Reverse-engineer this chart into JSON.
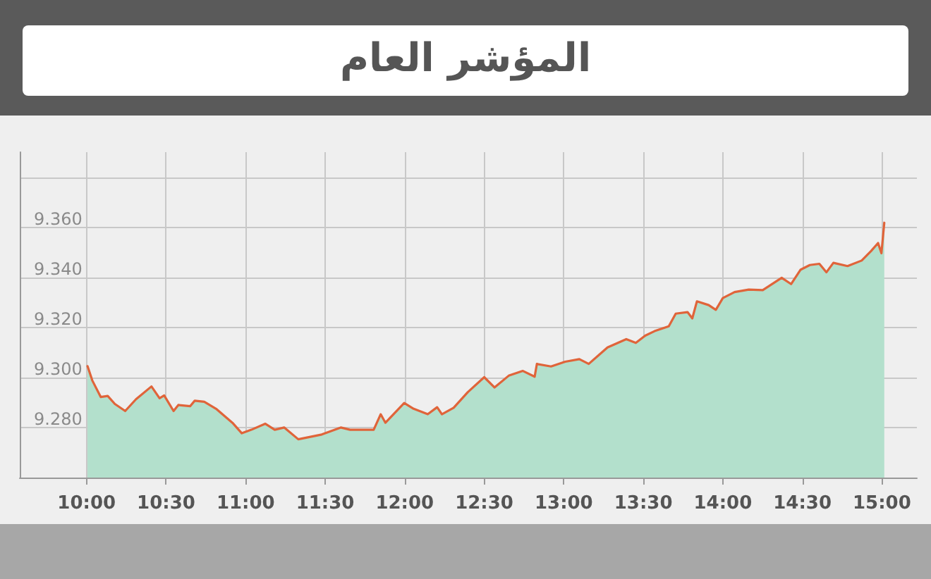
{
  "chart_data": {
    "type": "area",
    "title": "المؤشر العام",
    "x": [
      10.006,
      10.036,
      10.089,
      10.133,
      10.178,
      10.243,
      10.311,
      10.408,
      10.459,
      10.488,
      10.547,
      10.577,
      10.651,
      10.68,
      10.74,
      10.814,
      10.917,
      10.976,
      11.036,
      11.124,
      11.183,
      11.243,
      11.331,
      11.479,
      11.598,
      11.657,
      11.805,
      11.849,
      11.879,
      11.997,
      12.056,
      12.145,
      12.204,
      12.234,
      12.308,
      12.396,
      12.5,
      12.565,
      12.654,
      12.743,
      12.817,
      12.831,
      12.92,
      13.009,
      13.098,
      13.157,
      13.275,
      13.393,
      13.453,
      13.512,
      13.571,
      13.66,
      13.704,
      13.778,
      13.808,
      13.837,
      13.911,
      13.956,
      14.0,
      14.074,
      14.163,
      14.251,
      14.37,
      14.429,
      14.488,
      14.547,
      14.607,
      14.651,
      14.695,
      14.784,
      14.873,
      14.932,
      14.976,
      14.997,
      15.015
    ],
    "series": [
      {
        "color": "#b3e0cc",
        "values": [
          9304.5,
          9298.8,
          9292.2,
          9292.6,
          9289.4,
          9286.6,
          9291.3,
          9296.4,
          9291.7,
          9292.8,
          9286.6,
          9289.0,
          9288.5,
          9290.7,
          9290.3,
          9287.5,
          9281.9,
          9277.7,
          9279.1,
          9281.5,
          9279.1,
          9280.0,
          9275.3,
          9277.2,
          9280.0,
          9279.1,
          9279.1,
          9285.3,
          9281.9,
          9289.8,
          9287.5,
          9285.3,
          9288.1,
          9285.3,
          9287.9,
          9294.1,
          9300.1,
          9296.0,
          9300.7,
          9302.6,
          9300.3,
          9305.4,
          9304.4,
          9306.3,
          9307.3,
          9305.4,
          9312.0,
          9315.3,
          9313.8,
          9316.7,
          9318.5,
          9320.4,
          9325.5,
          9326.1,
          9323.6,
          9330.4,
          9328.9,
          9327.0,
          9331.7,
          9334.1,
          9335.1,
          9334.9,
          9339.8,
          9337.3,
          9343.0,
          9344.9,
          9345.4,
          9342.0,
          9345.8,
          9344.5,
          9346.7,
          9350.5,
          9353.7,
          9349.6,
          9361.8
        ]
      },
      {
        "type": "line",
        "color": "#e0643a",
        "values": [
          9304.5,
          9298.8,
          9292.2,
          9292.6,
          9289.4,
          9286.6,
          9291.3,
          9296.4,
          9291.7,
          9292.8,
          9286.6,
          9289.0,
          9288.5,
          9290.7,
          9290.3,
          9287.5,
          9281.9,
          9277.7,
          9279.1,
          9281.5,
          9279.1,
          9280.0,
          9275.3,
          9277.2,
          9280.0,
          9279.1,
          9279.1,
          9285.3,
          9281.9,
          9289.8,
          9287.5,
          9285.3,
          9288.1,
          9285.3,
          9287.9,
          9294.1,
          9300.1,
          9296.0,
          9300.7,
          9302.6,
          9300.3,
          9305.4,
          9304.4,
          9306.3,
          9307.3,
          9305.4,
          9312.0,
          9315.3,
          9313.8,
          9316.7,
          9318.5,
          9320.4,
          9325.5,
          9326.1,
          9323.6,
          9330.4,
          9328.9,
          9327.0,
          9331.7,
          9334.1,
          9335.1,
          9334.9,
          9339.8,
          9337.3,
          9343.0,
          9344.9,
          9345.4,
          9342.0,
          9345.8,
          9344.5,
          9346.7,
          9350.5,
          9353.7,
          9349.6,
          9361.8
        ]
      }
    ],
    "xlim": [
      9.58,
      15.22
    ],
    "xticks": [
      {
        "value": 10,
        "label": "10:00"
      },
      {
        "value": 10.5,
        "label": "10:30"
      },
      {
        "value": 11,
        "label": "11:00"
      },
      {
        "value": 11.5,
        "label": "11:30"
      },
      {
        "value": 12,
        "label": "12:00"
      },
      {
        "value": 12.5,
        "label": "12:30"
      },
      {
        "value": 13,
        "label": "13:00"
      },
      {
        "value": 13.5,
        "label": "13:30"
      },
      {
        "value": 14,
        "label": "14:00"
      },
      {
        "value": 14.5,
        "label": "14:30"
      },
      {
        "value": 15,
        "label": "15:00"
      }
    ],
    "ylim": [
      9260,
      9390
    ],
    "yticks": [
      {
        "value": 9260,
        "label": null
      },
      {
        "value": 9280,
        "label": "9.280"
      },
      {
        "value": 9300,
        "label": "9.300"
      },
      {
        "value": 9320,
        "label": "9.320"
      },
      {
        "value": 9340,
        "label": "9.340"
      },
      {
        "value": 9360,
        "label": "9.360"
      },
      {
        "value": 9380,
        "label": null
      }
    ],
    "grid": true,
    "marker": "none",
    "line_style": "solid"
  }
}
